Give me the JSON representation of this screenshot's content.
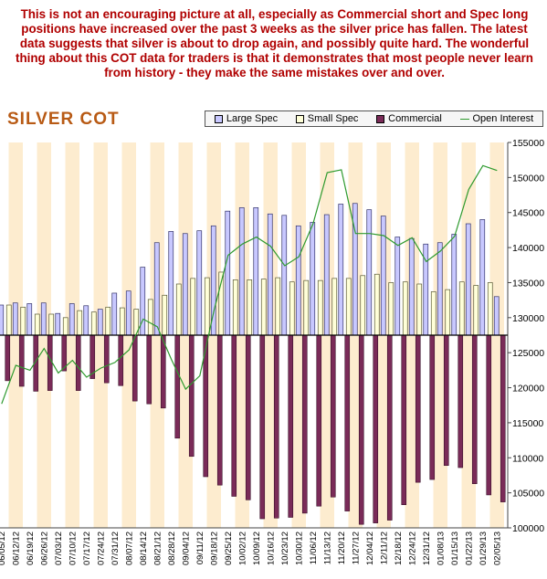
{
  "commentary": "This is not an encouraging picture at all, especially as Commercial short and Spec long positions have increased over the past 3 weeks as the silver price has fallen. The latest data suggests that silver is about to drop again, and possibly quite hard. The wonderful thing about this COT data for traders is that it demonstrates that most people never learn from history - they make the same mistakes over and over.",
  "colors": {
    "large_spec": "#c8c8ff",
    "small_spec": "#ffffd8",
    "commercial": "#7a2b58",
    "open_interest": "#2e9a2e",
    "title": "#b85a14",
    "commentary": "#b00000",
    "stripe": "#fdeccf"
  },
  "chart_data": {
    "type": "bar",
    "title": "SILVER COT",
    "legend_position": "top-right",
    "y_right_label_ticks": [
      "155000",
      "150000",
      "145000",
      "140000",
      "135000",
      "130000",
      "125000",
      "120000",
      "115000",
      "110000",
      "105000",
      "100000"
    ],
    "ylim": [
      100000,
      155000
    ],
    "baseline": 127500,
    "grid": false,
    "categories": [
      "06/05/12",
      "06/12/12",
      "06/19/12",
      "06/26/12",
      "07/03/12",
      "07/10/12",
      "07/17/12",
      "07/24/12",
      "07/31/12",
      "08/07/12",
      "08/14/12",
      "08/21/12",
      "08/28/12",
      "09/04/12",
      "09/11/12",
      "09/18/12",
      "09/25/12",
      "10/02/12",
      "10/09/12",
      "10/16/12",
      "10/23/12",
      "10/30/12",
      "11/06/12",
      "11/13/12",
      "11/20/12",
      "11/27/12",
      "12/04/12",
      "12/11/12",
      "12/18/12",
      "12/24/12",
      "12/31/12",
      "01/08/13",
      "01/15/13",
      "01/22/13",
      "01/29/13",
      "02/05/13"
    ],
    "series": [
      {
        "name": "Large Spec",
        "values": [
          131800,
          132100,
          132000,
          132100,
          130600,
          132000,
          131700,
          131200,
          133500,
          133800,
          137200,
          140700,
          142300,
          142000,
          142400,
          143100,
          145200,
          145700,
          145700,
          144800,
          144600,
          143100,
          143600,
          144700,
          146200,
          146300,
          145400,
          144500,
          141500,
          141300,
          140500,
          140700,
          141900,
          143400,
          144000,
          133000
        ]
      },
      {
        "name": "Small Spec",
        "values": [
          130400,
          131800,
          131500,
          130500,
          130500,
          130000,
          131000,
          130800,
          131500,
          131400,
          131200,
          132600,
          133200,
          134800,
          135600,
          135700,
          136500,
          135400,
          135400,
          135500,
          135700,
          135100,
          135300,
          135300,
          135600,
          135600,
          136000,
          136200,
          135000,
          135100,
          134800,
          133700,
          134000,
          135100,
          134600,
          135000
        ]
      },
      {
        "name": "Commercial",
        "values": [
          121000,
          120200,
          119500,
          119600,
          122400,
          119600,
          121300,
          120700,
          120300,
          118100,
          117700,
          117100,
          112800,
          110200,
          107300,
          106100,
          104500,
          104000,
          101300,
          101400,
          101500,
          102100,
          103100,
          104400,
          102400,
          100500,
          100700,
          101100,
          103300,
          106500,
          106900,
          108900,
          108600,
          106300,
          104700,
          103700
        ]
      },
      {
        "name": "Open Interest",
        "values": [
          117700,
          123200,
          122500,
          125600,
          122100,
          123900,
          121500,
          122800,
          123600,
          125400,
          129800,
          128700,
          124000,
          119800,
          121700,
          131000,
          138900,
          140500,
          141500,
          140200,
          137400,
          138700,
          143400,
          150700,
          151100,
          142000,
          142000,
          141700,
          140300,
          141400,
          138000,
          139500,
          141600,
          148300,
          151700,
          151000
        ]
      }
    ]
  }
}
